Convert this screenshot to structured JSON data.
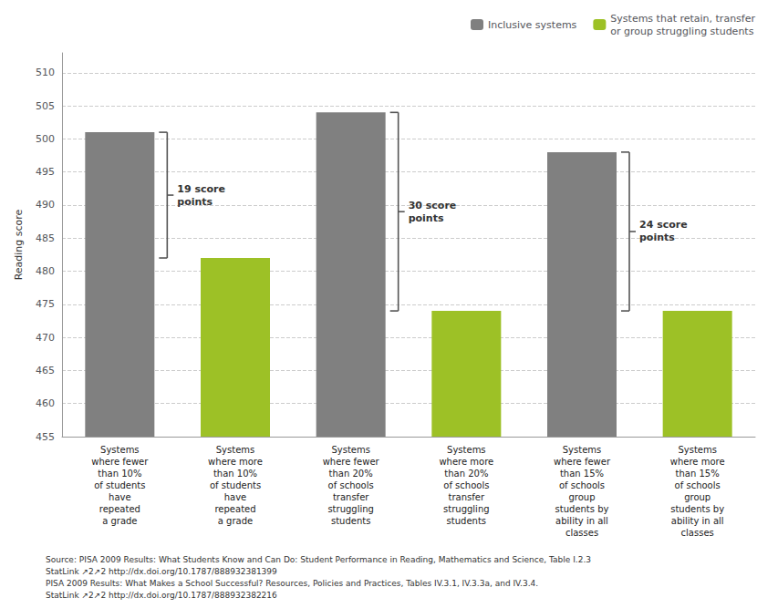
{
  "chart_data": {
    "type": "bar",
    "ylabel": "Reading score",
    "categories": [
      "Systems\nwhere fewer\nthan 10%\nof students\nhave\nrepeated\na grade",
      "Systems\nwhere more\nthan 10%\nof students\nhave\nrepeated\na grade",
      "Systems\nwhere fewer\nthan 20%\nof schools\ntransfer\nstruggling\nstudents",
      "Systems\nwhere more\nthan 20%\nof schools\ntransfer\nstruggling\nstudents",
      "Systems\nwhere fewer\nthan 15%\nof schools\ngroup\nstudents by\nability in all\nclasses",
      "Systems\nwhere more\nthan 15%\nof schools\ngroup\nstudents by\nability in all\nclasses"
    ],
    "series": [
      {
        "name": "Inclusive systems",
        "color": "#808080",
        "values": [
          501,
          null,
          504,
          null,
          498,
          null
        ]
      },
      {
        "name": "Systems that retain, transfer\nor group struggling students",
        "color": "#9dc126",
        "values": [
          null,
          482,
          null,
          474,
          null,
          474
        ]
      }
    ],
    "ylim": [
      455,
      513
    ],
    "yticks": [
      455,
      460,
      465,
      470,
      475,
      480,
      485,
      490,
      495,
      500,
      505,
      510
    ],
    "grid": true,
    "legend": "upper right",
    "annotations": [
      {
        "text": "19 score\npoints",
        "y_top": 501,
        "y_bot": 482
      },
      {
        "text": "30 score\npoints",
        "y_top": 504,
        "y_bot": 474
      },
      {
        "text": "24 score\npoints",
        "y_top": 498,
        "y_bot": 474
      }
    ],
    "footnote": "Source: PISA 2009 Results: What Students Know and Can Do: Student Performance in Reading, Mathematics and Science, Table I.2.3\nStatLink ↗2↗2 http://dx.doi.org/10.1787/888932381399\nPISA 2009 Results: What Makes a School Successful? Resources, Policies and Practices, Tables IV.3.1, IV.3.3a, and IV.3.4.\nStatLink ↗2↗2 http://dx.doi.org/10.1787/888932382216"
  }
}
